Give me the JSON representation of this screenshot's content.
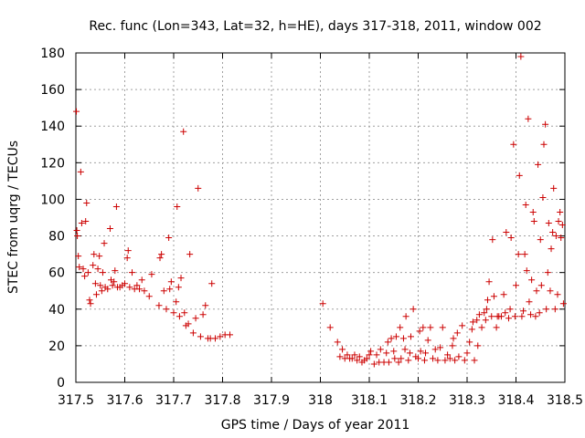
{
  "chart_data": {
    "type": "scatter",
    "title": "Rec. func (Lon=343, Lat=32, h=HE), days 317-318, 2011, window 002",
    "xlabel": "GPS time / Days of year 2011",
    "ylabel": "STEC from uqrg / TECUs",
    "xlim": [
      317.5,
      318.5
    ],
    "ylim": [
      0,
      180
    ],
    "xticks": [
      "317.5",
      "317.6",
      "317.7",
      "317.8",
      "317.9",
      "318",
      "318.1",
      "318.2",
      "318.3",
      "318.4",
      "318.5"
    ],
    "yticks": [
      "0",
      "20",
      "40",
      "60",
      "80",
      "100",
      "120",
      "140",
      "160",
      "180"
    ],
    "grid": true,
    "marker": "+",
    "marker_color": "#cc0000",
    "points": [
      [
        317.501,
        148
      ],
      [
        317.502,
        83
      ],
      [
        317.503,
        80
      ],
      [
        317.505,
        69
      ],
      [
        317.507,
        63
      ],
      [
        317.51,
        115
      ],
      [
        317.512,
        87
      ],
      [
        317.515,
        62
      ],
      [
        317.518,
        58
      ],
      [
        317.52,
        88
      ],
      [
        317.522,
        98
      ],
      [
        317.525,
        60
      ],
      [
        317.528,
        45
      ],
      [
        317.53,
        43
      ],
      [
        317.535,
        64
      ],
      [
        317.537,
        70
      ],
      [
        317.54,
        54
      ],
      [
        317.542,
        48
      ],
      [
        317.545,
        62
      ],
      [
        317.548,
        69
      ],
      [
        317.55,
        53
      ],
      [
        317.553,
        50
      ],
      [
        317.555,
        60
      ],
      [
        317.558,
        76
      ],
      [
        317.56,
        52
      ],
      [
        317.565,
        51
      ],
      [
        317.57,
        84
      ],
      [
        317.572,
        56
      ],
      [
        317.575,
        53
      ],
      [
        317.578,
        55
      ],
      [
        317.58,
        61
      ],
      [
        317.583,
        96
      ],
      [
        317.585,
        52
      ],
      [
        317.59,
        52
      ],
      [
        317.595,
        53
      ],
      [
        317.6,
        54
      ],
      [
        317.605,
        68
      ],
      [
        317.607,
        72
      ],
      [
        317.61,
        52
      ],
      [
        317.615,
        60
      ],
      [
        317.62,
        51
      ],
      [
        317.625,
        53
      ],
      [
        317.63,
        51
      ],
      [
        317.635,
        56
      ],
      [
        317.64,
        50
      ],
      [
        317.65,
        47
      ],
      [
        317.655,
        59
      ],
      [
        317.67,
        42
      ],
      [
        317.672,
        68
      ],
      [
        317.675,
        70
      ],
      [
        317.68,
        50
      ],
      [
        317.685,
        40
      ],
      [
        317.69,
        79
      ],
      [
        317.692,
        51
      ],
      [
        317.695,
        55
      ],
      [
        317.7,
        38
      ],
      [
        317.705,
        44
      ],
      [
        317.707,
        96
      ],
      [
        317.71,
        52
      ],
      [
        317.712,
        36
      ],
      [
        317.715,
        57
      ],
      [
        317.72,
        137
      ],
      [
        317.722,
        38
      ],
      [
        317.725,
        31
      ],
      [
        317.73,
        32
      ],
      [
        317.733,
        70
      ],
      [
        317.74,
        27
      ],
      [
        317.745,
        35
      ],
      [
        317.75,
        106
      ],
      [
        317.755,
        25
      ],
      [
        317.76,
        37
      ],
      [
        317.765,
        42
      ],
      [
        317.77,
        24
      ],
      [
        317.775,
        24
      ],
      [
        317.778,
        54
      ],
      [
        317.785,
        24
      ],
      [
        317.795,
        25
      ],
      [
        317.805,
        26
      ],
      [
        317.815,
        26
      ],
      [
        318.005,
        43
      ],
      [
        318.02,
        30
      ],
      [
        318.035,
        22
      ],
      [
        318.04,
        14
      ],
      [
        318.045,
        18
      ],
      [
        318.05,
        13
      ],
      [
        318.055,
        15
      ],
      [
        318.06,
        13
      ],
      [
        318.065,
        13
      ],
      [
        318.07,
        15
      ],
      [
        318.075,
        12
      ],
      [
        318.08,
        14
      ],
      [
        318.085,
        11
      ],
      [
        318.09,
        12
      ],
      [
        318.095,
        13
      ],
      [
        318.1,
        15
      ],
      [
        318.103,
        17
      ],
      [
        318.11,
        10
      ],
      [
        318.115,
        15
      ],
      [
        318.12,
        11
      ],
      [
        318.123,
        18
      ],
      [
        318.13,
        11
      ],
      [
        318.135,
        16
      ],
      [
        318.138,
        22
      ],
      [
        318.14,
        11
      ],
      [
        318.145,
        24
      ],
      [
        318.15,
        17
      ],
      [
        318.152,
        13
      ],
      [
        318.155,
        25
      ],
      [
        318.16,
        11
      ],
      [
        318.163,
        30
      ],
      [
        318.165,
        13
      ],
      [
        318.17,
        24
      ],
      [
        318.173,
        18
      ],
      [
        318.175,
        36
      ],
      [
        318.18,
        12
      ],
      [
        318.183,
        16
      ],
      [
        318.185,
        25
      ],
      [
        318.19,
        40
      ],
      [
        318.195,
        14
      ],
      [
        318.2,
        13
      ],
      [
        318.203,
        28
      ],
      [
        318.205,
        17
      ],
      [
        318.21,
        30
      ],
      [
        318.213,
        12
      ],
      [
        318.215,
        16
      ],
      [
        318.22,
        23
      ],
      [
        318.225,
        30
      ],
      [
        318.23,
        13
      ],
      [
        318.235,
        18
      ],
      [
        318.24,
        12
      ],
      [
        318.245,
        19
      ],
      [
        318.25,
        30
      ],
      [
        318.255,
        12
      ],
      [
        318.26,
        15
      ],
      [
        318.265,
        13
      ],
      [
        318.27,
        20
      ],
      [
        318.272,
        24
      ],
      [
        318.275,
        12
      ],
      [
        318.28,
        27
      ],
      [
        318.283,
        14
      ],
      [
        318.29,
        31
      ],
      [
        318.295,
        12
      ],
      [
        318.3,
        16
      ],
      [
        318.305,
        22
      ],
      [
        318.31,
        29
      ],
      [
        318.312,
        33
      ],
      [
        318.315,
        12
      ],
      [
        318.32,
        34
      ],
      [
        318.322,
        20
      ],
      [
        318.325,
        37
      ],
      [
        318.33,
        30
      ],
      [
        318.335,
        38
      ],
      [
        318.338,
        34
      ],
      [
        318.34,
        40
      ],
      [
        318.342,
        45
      ],
      [
        318.345,
        55
      ],
      [
        318.35,
        36
      ],
      [
        318.352,
        78
      ],
      [
        318.355,
        47
      ],
      [
        318.36,
        30
      ],
      [
        318.362,
        36
      ],
      [
        318.365,
        36
      ],
      [
        318.37,
        36
      ],
      [
        318.375,
        48
      ],
      [
        318.378,
        38
      ],
      [
        318.38,
        82
      ],
      [
        318.385,
        35
      ],
      [
        318.388,
        40
      ],
      [
        318.39,
        79
      ],
      [
        318.395,
        130
      ],
      [
        318.398,
        36
      ],
      [
        318.4,
        53
      ],
      [
        318.405,
        70
      ],
      [
        318.407,
        113
      ],
      [
        318.41,
        178
      ],
      [
        318.412,
        36
      ],
      [
        318.415,
        39
      ],
      [
        318.418,
        70
      ],
      [
        318.42,
        97
      ],
      [
        318.422,
        61
      ],
      [
        318.425,
        144
      ],
      [
        318.427,
        44
      ],
      [
        318.43,
        37
      ],
      [
        318.432,
        56
      ],
      [
        318.435,
        93
      ],
      [
        318.437,
        88
      ],
      [
        318.44,
        36
      ],
      [
        318.442,
        50
      ],
      [
        318.445,
        119
      ],
      [
        318.448,
        38
      ],
      [
        318.45,
        78
      ],
      [
        318.452,
        53
      ],
      [
        318.455,
        101
      ],
      [
        318.457,
        130
      ],
      [
        318.46,
        141
      ],
      [
        318.462,
        40
      ],
      [
        318.465,
        60
      ],
      [
        318.467,
        87
      ],
      [
        318.47,
        50
      ],
      [
        318.472,
        73
      ],
      [
        318.475,
        82
      ],
      [
        318.477,
        106
      ],
      [
        318.48,
        40
      ],
      [
        318.482,
        80
      ],
      [
        318.485,
        48
      ],
      [
        318.487,
        88
      ],
      [
        318.49,
        93
      ],
      [
        318.492,
        79
      ],
      [
        318.495,
        86
      ],
      [
        318.497,
        43
      ]
    ]
  }
}
